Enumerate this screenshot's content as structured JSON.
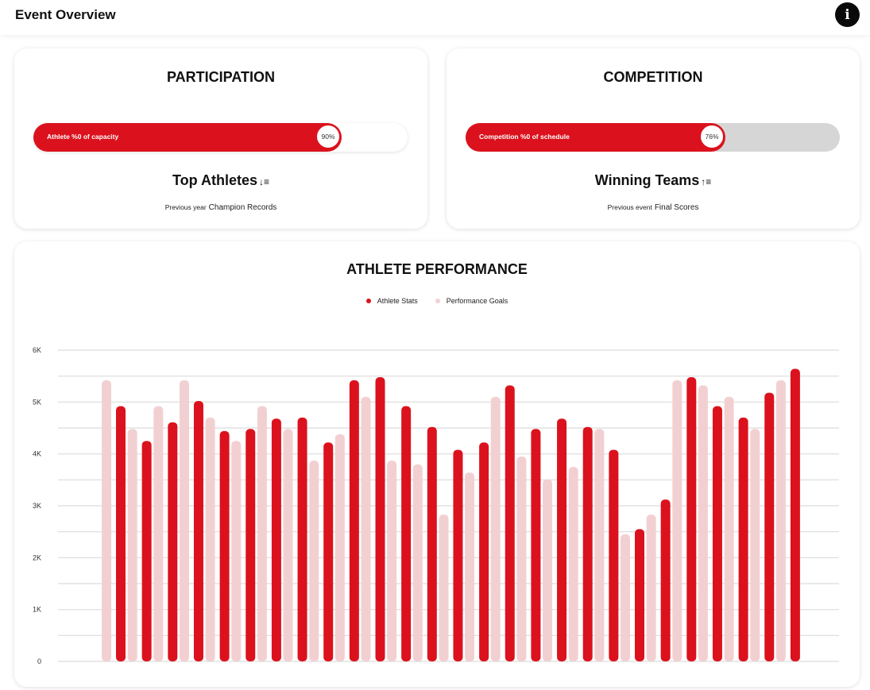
{
  "header": {
    "title": "Event Overview",
    "info_icon": "info-icon"
  },
  "participation": {
    "title": "PARTICIPATION",
    "bar_label": "Athlete %0 of capacity",
    "percent_label": "90%",
    "percent": 90,
    "list_title": "Top Athletes",
    "sort_icon_glyph": "↓≡",
    "caption_small": "Previous year",
    "caption": "Champion Records"
  },
  "competition": {
    "title": "COMPETITION",
    "bar_label": "Competition %0 of schedule",
    "percent_label": "76%",
    "percent": 76,
    "list_title": "Winning Teams",
    "sort_icon_glyph": "↑≡",
    "caption_small": "Previous event",
    "caption": "Final Scores"
  },
  "performance": {
    "title": "ATHLETE PERFORMANCE",
    "legend": [
      {
        "label": "Athlete Stats",
        "color": "#db121d"
      },
      {
        "label": "Performance Goals",
        "color": "#f2d0d2"
      }
    ]
  },
  "chart_data": {
    "type": "bar",
    "title": "ATHLETE PERFORMANCE",
    "xlabel": "",
    "ylabel": "",
    "ylim": [
      0,
      6000
    ],
    "yticks": [
      0,
      1000,
      2000,
      3000,
      4000,
      5000,
      6000
    ],
    "ytick_labels": [
      "0",
      "1K",
      "2K",
      "3K",
      "4K",
      "5K",
      "6K"
    ],
    "grid": true,
    "legend_position": "top-center",
    "series": [
      {
        "name": "Performance Goals",
        "color": "#f2d0d2",
        "values": [
          5420,
          4480,
          4920,
          5420,
          4700,
          4250,
          4920,
          4480,
          3870,
          4380,
          5100,
          3870,
          3800,
          2830,
          3640,
          5100,
          3950,
          3510,
          3750,
          4480,
          2450,
          2830,
          5420,
          5320,
          5100,
          4480,
          5420
        ]
      },
      {
        "name": "Athlete Stats",
        "color": "#db121d",
        "values": [
          4920,
          4250,
          4610,
          5020,
          4440,
          4480,
          4680,
          4700,
          4220,
          5420,
          5480,
          4920,
          4520,
          4080,
          4220,
          5320,
          4480,
          4680,
          4520,
          4080,
          2550,
          3120,
          5480,
          4920,
          4700,
          5180,
          5640
        ]
      }
    ]
  }
}
